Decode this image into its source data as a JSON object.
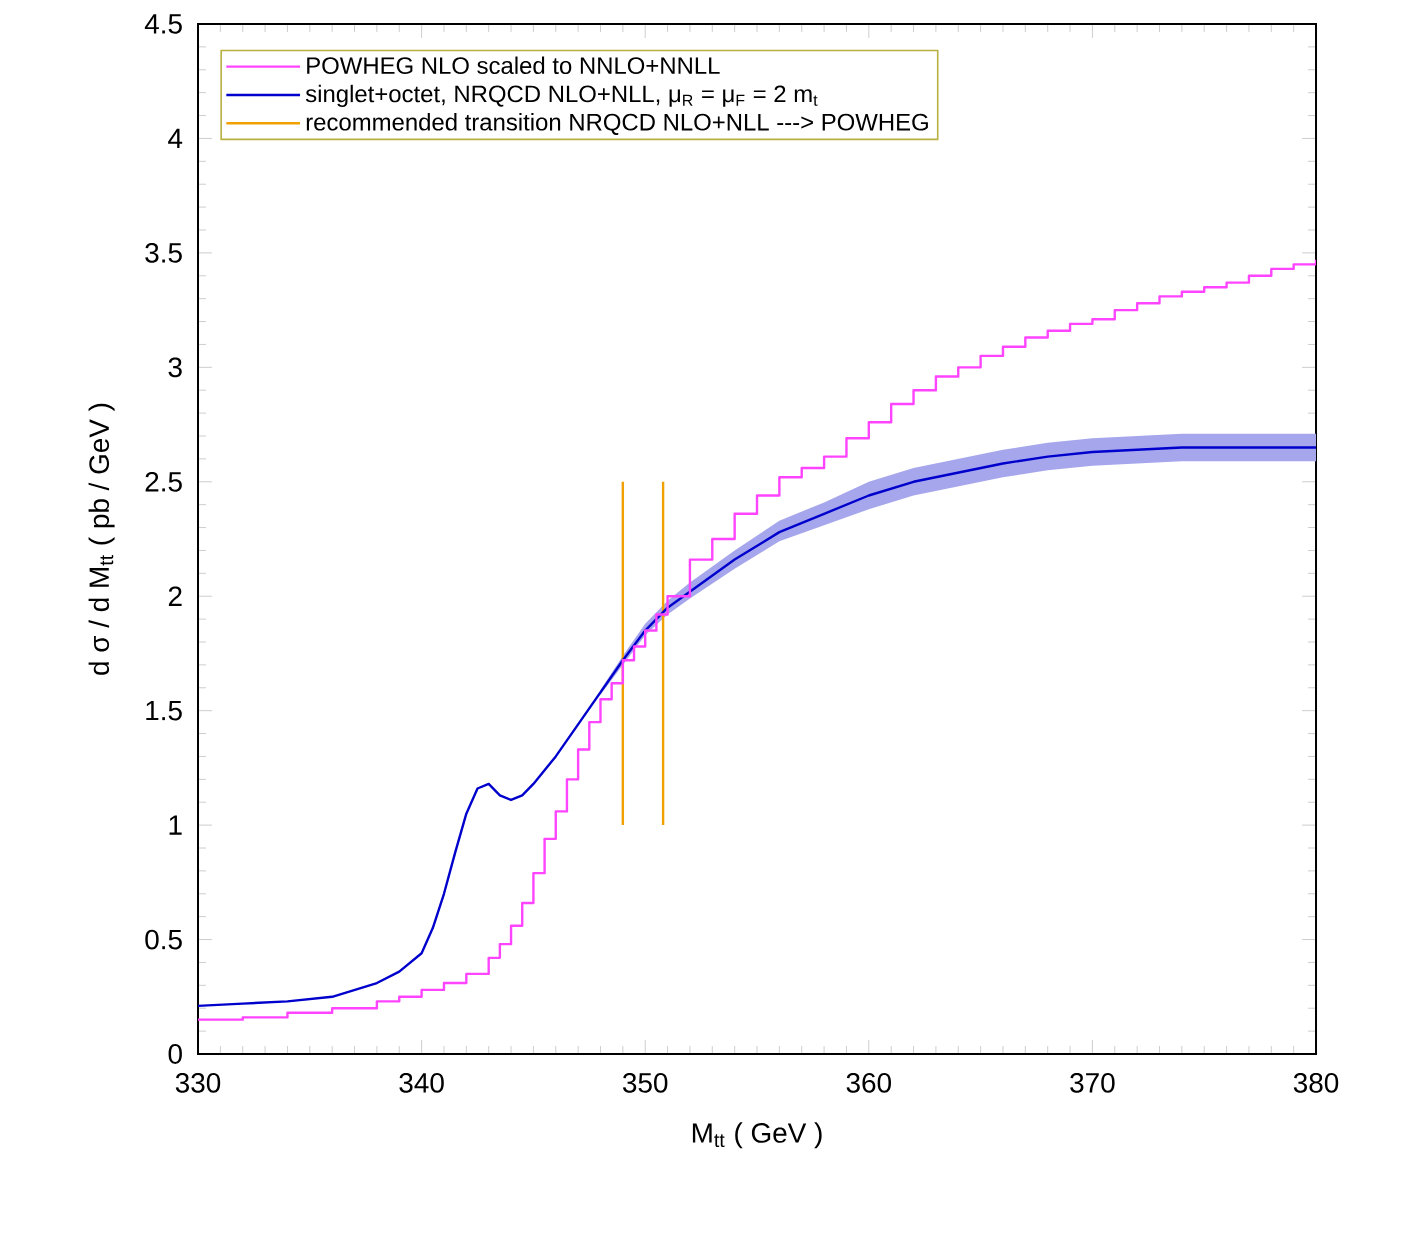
{
  "chart_data": {
    "type": "line",
    "xlabel": "M$_{tt}$  ( GeV )",
    "ylabel": "d σ / d M$_{tt}$   ( pb / GeV )",
    "xlim": [
      330,
      380
    ],
    "xticks": [
      330,
      340,
      350,
      360,
      370,
      380
    ],
    "ylim": [
      0,
      4.5
    ],
    "yticks": [
      0,
      0.5,
      1,
      1.5,
      2,
      2.5,
      3,
      3.5,
      4,
      4.5
    ],
    "legend": "top left",
    "grid": false,
    "series": [
      {
        "name": "POWHEG NLO scaled to NNLO+NNLL",
        "type": "step",
        "color": "#ff44ff",
        "x": [
          330,
          332,
          334,
          336,
          338,
          339,
          340,
          341,
          342,
          343,
          343.5,
          344,
          344.5,
          345,
          345.5,
          346,
          346.5,
          347,
          347.5,
          348,
          348.5,
          349,
          349.5,
          350,
          350.5,
          351,
          352,
          353,
          354,
          355,
          356,
          357,
          358,
          359,
          360,
          361,
          362,
          363,
          364,
          365,
          366,
          367,
          368,
          369,
          370,
          371,
          372,
          373,
          374,
          375,
          376,
          377,
          378,
          379,
          380
        ],
        "values": [
          0.15,
          0.16,
          0.18,
          0.2,
          0.23,
          0.25,
          0.28,
          0.31,
          0.35,
          0.42,
          0.48,
          0.56,
          0.66,
          0.79,
          0.94,
          1.06,
          1.2,
          1.33,
          1.45,
          1.55,
          1.62,
          1.72,
          1.78,
          1.85,
          1.92,
          2.0,
          2.16,
          2.25,
          2.36,
          2.44,
          2.52,
          2.56,
          2.61,
          2.69,
          2.76,
          2.84,
          2.9,
          2.96,
          3.0,
          3.05,
          3.09,
          3.13,
          3.16,
          3.19,
          3.21,
          3.25,
          3.28,
          3.31,
          3.33,
          3.35,
          3.37,
          3.4,
          3.43,
          3.45,
          3.47
        ]
      },
      {
        "name": "singlet+octet, NRQCD NLO+NLL, μ$_{R}$ = μ$_{F}$ = 2 m$_{t}$",
        "color": "#0000cc",
        "x": [
          330,
          332,
          334,
          336,
          338,
          339,
          340,
          340.5,
          341,
          341.5,
          342,
          342.5,
          343,
          343.5,
          344,
          344.5,
          345,
          346,
          347,
          348,
          349,
          350,
          351,
          352,
          354,
          356,
          358,
          360,
          362,
          364,
          366,
          368,
          370,
          372,
          374,
          376,
          378,
          380
        ],
        "values": [
          0.21,
          0.22,
          0.23,
          0.25,
          0.31,
          0.36,
          0.44,
          0.55,
          0.7,
          0.88,
          1.05,
          1.16,
          1.18,
          1.13,
          1.11,
          1.13,
          1.18,
          1.3,
          1.44,
          1.58,
          1.72,
          1.85,
          1.95,
          2.02,
          2.16,
          2.28,
          2.36,
          2.44,
          2.5,
          2.54,
          2.58,
          2.61,
          2.63,
          2.64,
          2.65,
          2.65,
          2.65,
          2.65
        ],
        "lower": [
          null,
          null,
          null,
          null,
          null,
          null,
          null,
          null,
          null,
          null,
          null,
          null,
          null,
          null,
          null,
          null,
          null,
          null,
          null,
          1.57,
          1.7,
          1.83,
          1.92,
          1.99,
          2.12,
          2.24,
          2.31,
          2.38,
          2.44,
          2.48,
          2.52,
          2.55,
          2.57,
          2.58,
          2.59,
          2.59,
          2.59,
          2.59
        ],
        "upper": [
          null,
          null,
          null,
          null,
          null,
          null,
          null,
          null,
          null,
          null,
          null,
          null,
          null,
          null,
          null,
          null,
          null,
          null,
          null,
          1.59,
          1.74,
          1.88,
          1.98,
          2.06,
          2.2,
          2.33,
          2.41,
          2.5,
          2.56,
          2.6,
          2.64,
          2.67,
          2.69,
          2.7,
          2.71,
          2.71,
          2.71,
          2.71
        ]
      },
      {
        "name": "recommended transition NRQCD NLO+NLL ---> POWHEG",
        "color": "#f0a000",
        "x": [
          349,
          349
        ],
        "values": [
          1,
          2.5
        ]
      },
      {
        "color": "#f0a000",
        "x": [
          350.8,
          350.8
        ],
        "values": [
          1,
          2.5
        ]
      }
    ]
  }
}
